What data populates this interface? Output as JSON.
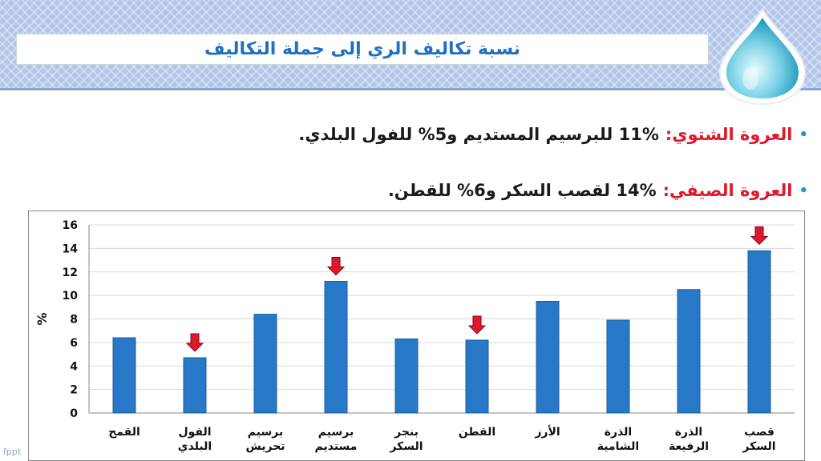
{
  "slide": {
    "title": "نسبة تكاليف الري إلى جملة التكاليف",
    "watermark": "fppt",
    "colors": {
      "accent": "#1f6fc0",
      "highlight": "#e0182b",
      "bar": "#2878c8",
      "arrow": "#e0182b"
    }
  },
  "bullets": [
    {
      "key": "العروة الشتوي:",
      "text": "11% للبرسيم المستديم و5% للفول البلدي."
    },
    {
      "key": "العروة الصيفي:",
      "text": "14% لقصب السكر و6% للقطن."
    }
  ],
  "chart_data": {
    "type": "bar",
    "ylabel": "%",
    "ylim": [
      0,
      16
    ],
    "yticks": [
      0,
      2,
      4,
      6,
      8,
      10,
      12,
      14,
      16
    ],
    "grid": true,
    "categories": [
      [
        "القمح"
      ],
      [
        "الفول",
        "البلدي"
      ],
      [
        "برسيم",
        "تحريش"
      ],
      [
        "برسيم",
        "مستديم"
      ],
      [
        "بنجر",
        "السكر"
      ],
      [
        "القطن"
      ],
      [
        "الأرز"
      ],
      [
        "الذرة",
        "الشامية"
      ],
      [
        "الذرة",
        "الرفيعة"
      ],
      [
        "قصب",
        "السكر"
      ]
    ],
    "values": [
      6.4,
      4.7,
      8.4,
      11.2,
      6.3,
      6.2,
      9.5,
      7.9,
      10.5,
      13.8
    ],
    "highlighted": [
      1,
      3,
      5,
      9
    ]
  }
}
